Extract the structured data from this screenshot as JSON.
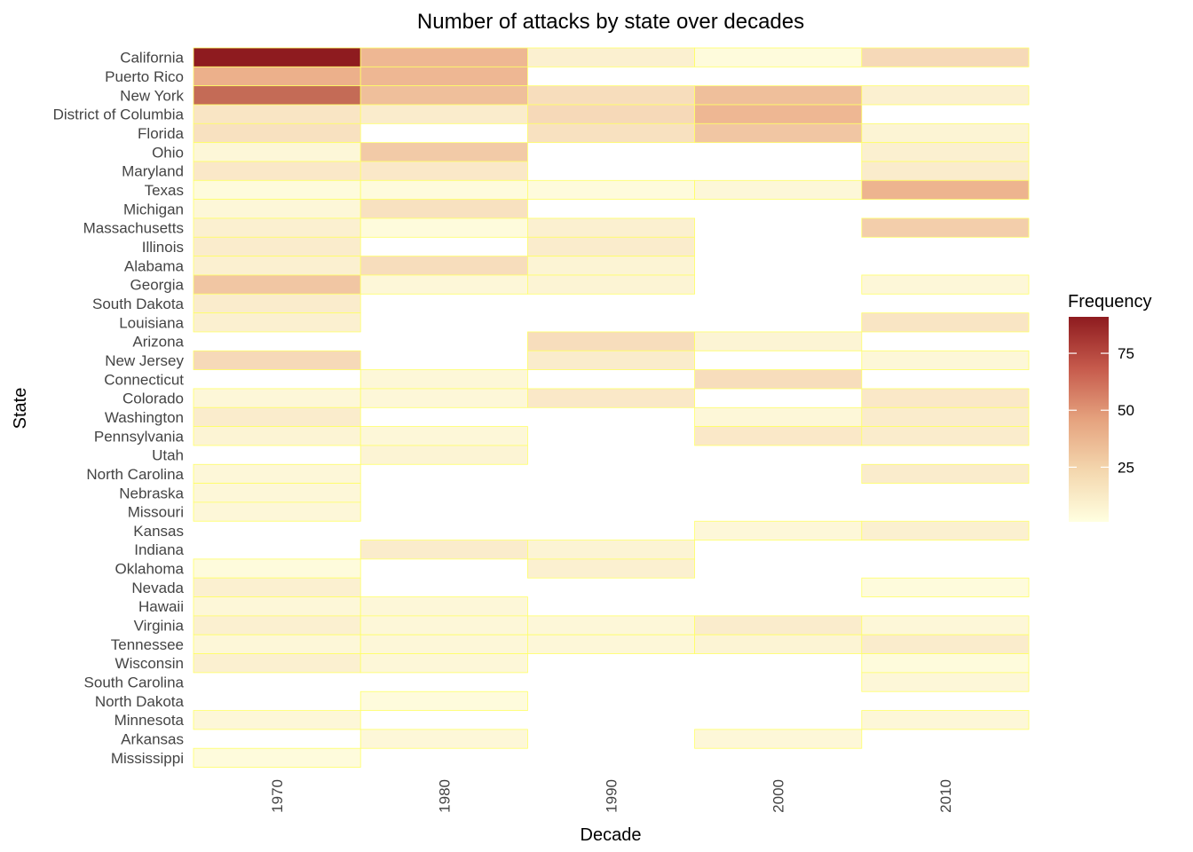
{
  "chart_data": {
    "type": "heatmap",
    "title": "Number of attacks by state over decades",
    "xlabel": "Decade",
    "ylabel": "State",
    "legend": {
      "title": "Frequency",
      "ticks": [
        25,
        50,
        75
      ],
      "placement": "right"
    },
    "color_scale": {
      "low": "#FFFFE0",
      "mid": "#E8A07A",
      "high": "#8E1B1F",
      "min": 1,
      "max": 91,
      "cell_border": "#FFFF66"
    },
    "decades": [
      "1970",
      "1980",
      "1990",
      "2000",
      "2010"
    ],
    "states": [
      "California",
      "Puerto Rico",
      "New York",
      "District of Columbia",
      "Florida",
      "Ohio",
      "Maryland",
      "Texas",
      "Michigan",
      "Massachusetts",
      "Illinois",
      "Alabama",
      "Georgia",
      "South Dakota",
      "Louisiana",
      "Arizona",
      "New Jersey",
      "Connecticut",
      "Colorado",
      "Washington",
      "Pennsylvania",
      "Utah",
      "North Carolina",
      "Nebraska",
      "Missouri",
      "Kansas",
      "Indiana",
      "Oklahoma",
      "Nevada",
      "Hawaii",
      "Virginia",
      "Tennessee",
      "Wisconsin",
      "South Carolina",
      "North Dakota",
      "Minnesota",
      "Arkansas",
      "Mississippi"
    ],
    "values": [
      [
        91,
        20,
        5,
        2,
        11
      ],
      [
        22,
        20,
        null,
        null,
        null
      ],
      [
        52,
        18,
        10,
        18,
        5
      ],
      [
        8,
        6,
        11,
        20,
        null
      ],
      [
        9,
        null,
        9,
        16,
        4
      ],
      [
        3,
        15,
        null,
        null,
        5
      ],
      [
        7,
        7,
        null,
        null,
        6
      ],
      [
        2,
        2,
        2,
        3,
        21
      ],
      [
        3,
        9,
        null,
        null,
        null
      ],
      [
        5,
        2,
        5,
        null,
        14
      ],
      [
        6,
        null,
        6,
        null,
        null
      ],
      [
        5,
        10,
        4,
        null,
        null
      ],
      [
        16,
        3,
        4,
        null,
        3
      ],
      [
        6,
        null,
        null,
        null,
        null
      ],
      [
        5,
        null,
        null,
        null,
        8
      ],
      [
        null,
        null,
        10,
        4,
        null
      ],
      [
        11,
        null,
        6,
        null,
        3
      ],
      [
        null,
        3,
        null,
        10,
        null
      ],
      [
        3,
        3,
        7,
        null,
        7
      ],
      [
        6,
        null,
        null,
        3,
        6
      ],
      [
        4,
        3,
        null,
        7,
        6
      ],
      [
        null,
        4,
        null,
        null,
        null
      ],
      [
        3,
        null,
        null,
        null,
        6
      ],
      [
        3,
        null,
        null,
        null,
        null
      ],
      [
        3,
        null,
        null,
        null,
        null
      ],
      [
        null,
        null,
        null,
        3,
        5
      ],
      [
        null,
        6,
        4,
        null,
        null
      ],
      [
        2,
        null,
        5,
        null,
        null
      ],
      [
        5,
        null,
        null,
        null,
        2
      ],
      [
        3,
        3,
        null,
        null,
        null
      ],
      [
        5,
        3,
        3,
        6,
        3
      ],
      [
        3,
        3,
        3,
        4,
        6
      ],
      [
        5,
        3,
        null,
        null,
        2
      ],
      [
        null,
        null,
        null,
        null,
        3
      ],
      [
        null,
        2,
        null,
        null,
        null
      ],
      [
        3,
        null,
        null,
        null,
        3
      ],
      [
        null,
        3,
        null,
        3,
        null
      ],
      [
        2,
        null,
        null,
        null,
        null
      ]
    ]
  }
}
